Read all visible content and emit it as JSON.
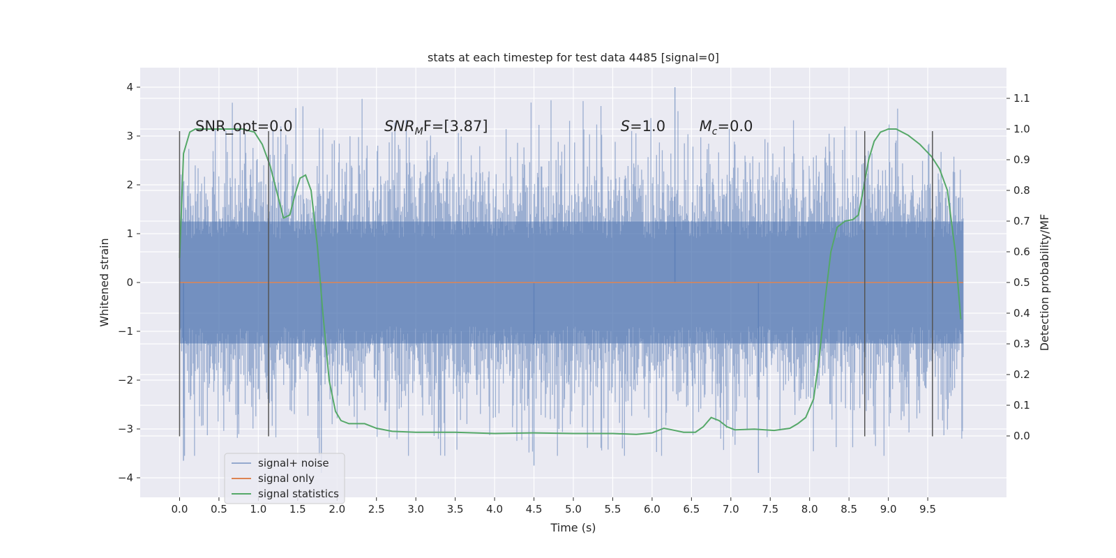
{
  "chart_data": {
    "type": "line",
    "title": "stats at each timestep for test data 4485 [signal=0]",
    "xlabel": "Time (s)",
    "ylabel": "Whitened strain",
    "y2label": "Detection probability/MF",
    "xlim": [
      -0.5,
      10.5
    ],
    "ylim": [
      -4.4,
      4.4
    ],
    "y2lim": [
      -0.2,
      1.2
    ],
    "x_ticks": [
      0.0,
      0.5,
      1.0,
      1.5,
      2.0,
      2.5,
      3.0,
      3.5,
      4.0,
      4.5,
      5.0,
      5.5,
      6.0,
      6.5,
      7.0,
      7.5,
      8.0,
      8.5,
      9.0,
      9.5
    ],
    "x_tick_labels": [
      "0.0",
      "0.5",
      "1.0",
      "1.5",
      "2.0",
      "2.5",
      "3.0",
      "3.5",
      "4.0",
      "4.5",
      "5.0",
      "5.5",
      "6.0",
      "6.5",
      "7.0",
      "7.5",
      "8.0",
      "8.5",
      "9.0",
      "9.5"
    ],
    "y_ticks": [
      -4,
      -3,
      -2,
      -1,
      0,
      1,
      2,
      3,
      4
    ],
    "y_tick_labels": [
      "−4",
      "−3",
      "−2",
      "−1",
      "0",
      "1",
      "2",
      "3",
      "4"
    ],
    "y2_ticks": [
      0.0,
      0.1,
      0.2,
      0.3,
      0.4,
      0.5,
      0.6,
      0.7,
      0.8,
      0.9,
      1.0,
      1.1
    ],
    "y2_tick_labels": [
      "0.0",
      "0.1",
      "0.2",
      "0.3",
      "0.4",
      "0.5",
      "0.6",
      "0.7",
      "0.8",
      "0.9",
      "1.0",
      "1.1"
    ],
    "grid": true,
    "legend_placement": "lower-left",
    "annotations": [
      {
        "x": 0.2,
        "y": 3.1,
        "text_plain": "SNR_opt=0.0"
      },
      {
        "x": 2.6,
        "y": 3.1,
        "italic": "SNR",
        "sub": "M",
        "rest": "F=[3.87]"
      },
      {
        "x": 5.6,
        "y": 3.1,
        "italic": "S",
        "rest": "=1.0"
      },
      {
        "x": 6.6,
        "y": 3.1,
        "italic": "M",
        "sub": "c",
        "rest": "=0.0"
      }
    ],
    "vertical_markers": [
      0.0,
      1.13,
      8.7,
      9.56
    ],
    "vertical_marker_range": [
      -3.15,
      3.1
    ],
    "series": [
      {
        "name": "signal+ noise",
        "color": "#4c72b0",
        "kind": "noise",
        "x_range": [
          0.0,
          9.95
        ],
        "std": 0.95,
        "core_abs": 1.25,
        "max": 4.0,
        "min": -3.75
      },
      {
        "name": "signal only",
        "color": "#dd8452",
        "kind": "flat",
        "x_range": [
          0.0,
          9.95
        ],
        "value": 0.0
      },
      {
        "name": "signal statistics",
        "color": "#55a868",
        "kind": "line",
        "axis": "y2",
        "points": [
          [
            0.0,
            0.58
          ],
          [
            0.05,
            0.92
          ],
          [
            0.13,
            0.99
          ],
          [
            0.2,
            1.0
          ],
          [
            0.5,
            1.0
          ],
          [
            0.8,
            1.0
          ],
          [
            0.95,
            0.99
          ],
          [
            1.05,
            0.95
          ],
          [
            1.15,
            0.88
          ],
          [
            1.25,
            0.78
          ],
          [
            1.32,
            0.71
          ],
          [
            1.4,
            0.72
          ],
          [
            1.47,
            0.79
          ],
          [
            1.53,
            0.84
          ],
          [
            1.6,
            0.85
          ],
          [
            1.67,
            0.8
          ],
          [
            1.75,
            0.62
          ],
          [
            1.82,
            0.4
          ],
          [
            1.9,
            0.18
          ],
          [
            1.98,
            0.08
          ],
          [
            2.05,
            0.05
          ],
          [
            2.15,
            0.04
          ],
          [
            2.35,
            0.04
          ],
          [
            2.5,
            0.025
          ],
          [
            2.7,
            0.015
          ],
          [
            3.0,
            0.012
          ],
          [
            3.5,
            0.012
          ],
          [
            4.0,
            0.008
          ],
          [
            4.5,
            0.01
          ],
          [
            5.0,
            0.008
          ],
          [
            5.5,
            0.008
          ],
          [
            5.8,
            0.005
          ],
          [
            6.0,
            0.01
          ],
          [
            6.15,
            0.025
          ],
          [
            6.25,
            0.02
          ],
          [
            6.4,
            0.012
          ],
          [
            6.55,
            0.012
          ],
          [
            6.65,
            0.03
          ],
          [
            6.75,
            0.06
          ],
          [
            6.85,
            0.05
          ],
          [
            6.95,
            0.03
          ],
          [
            7.05,
            0.02
          ],
          [
            7.3,
            0.022
          ],
          [
            7.55,
            0.018
          ],
          [
            7.75,
            0.025
          ],
          [
            7.85,
            0.04
          ],
          [
            7.95,
            0.06
          ],
          [
            8.05,
            0.12
          ],
          [
            8.12,
            0.25
          ],
          [
            8.2,
            0.45
          ],
          [
            8.27,
            0.6
          ],
          [
            8.35,
            0.68
          ],
          [
            8.45,
            0.7
          ],
          [
            8.55,
            0.705
          ],
          [
            8.62,
            0.72
          ],
          [
            8.68,
            0.8
          ],
          [
            8.75,
            0.9
          ],
          [
            8.82,
            0.96
          ],
          [
            8.9,
            0.99
          ],
          [
            9.0,
            1.0
          ],
          [
            9.1,
            1.0
          ],
          [
            9.25,
            0.98
          ],
          [
            9.4,
            0.95
          ],
          [
            9.55,
            0.91
          ],
          [
            9.65,
            0.87
          ],
          [
            9.75,
            0.8
          ],
          [
            9.85,
            0.6
          ],
          [
            9.92,
            0.38
          ]
        ]
      }
    ]
  }
}
